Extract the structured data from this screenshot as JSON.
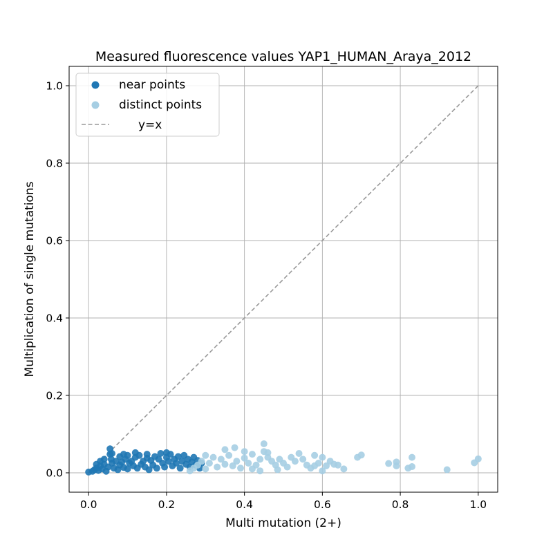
{
  "chart_data": {
    "type": "scatter",
    "title": "Measured fluorescence values YAP1_HUMAN_Araya_2012",
    "xlabel": "Multi mutation (2+)",
    "ylabel": "Multiplication of single mutations",
    "xlim": [
      -0.05,
      1.05
    ],
    "ylim": [
      -0.05,
      1.05
    ],
    "xticks": [
      "0.0",
      "0.2",
      "0.4",
      "0.6",
      "0.8",
      "1.0"
    ],
    "yticks": [
      "0.0",
      "0.2",
      "0.4",
      "0.6",
      "0.8",
      "1.0"
    ],
    "grid": true,
    "legend_position": "upper-left",
    "series": [
      {
        "name": "near points",
        "color": "#1f77b4",
        "points": [
          [
            0.0,
            0.002
          ],
          [
            0.01,
            0.004
          ],
          [
            0.015,
            0.008
          ],
          [
            0.02,
            0.012
          ],
          [
            0.025,
            0.006
          ],
          [
            0.03,
            0.018
          ],
          [
            0.035,
            0.01
          ],
          [
            0.04,
            0.022
          ],
          [
            0.045,
            0.004
          ],
          [
            0.05,
            0.015
          ],
          [
            0.055,
            0.062
          ],
          [
            0.055,
            0.048
          ],
          [
            0.058,
            0.035
          ],
          [
            0.06,
            0.025
          ],
          [
            0.065,
            0.012
          ],
          [
            0.07,
            0.03
          ],
          [
            0.075,
            0.008
          ],
          [
            0.08,
            0.02
          ],
          [
            0.085,
            0.028
          ],
          [
            0.09,
            0.014
          ],
          [
            0.095,
            0.035
          ],
          [
            0.1,
            0.01
          ],
          [
            0.105,
            0.025
          ],
          [
            0.11,
            0.03
          ],
          [
            0.115,
            0.018
          ],
          [
            0.12,
            0.04
          ],
          [
            0.125,
            0.012
          ],
          [
            0.13,
            0.045
          ],
          [
            0.135,
            0.022
          ],
          [
            0.14,
            0.03
          ],
          [
            0.145,
            0.015
          ],
          [
            0.15,
            0.038
          ],
          [
            0.155,
            0.008
          ],
          [
            0.16,
            0.032
          ],
          [
            0.165,
            0.02
          ],
          [
            0.17,
            0.042
          ],
          [
            0.175,
            0.012
          ],
          [
            0.18,
            0.035
          ],
          [
            0.185,
            0.05
          ],
          [
            0.19,
            0.025
          ],
          [
            0.195,
            0.015
          ],
          [
            0.2,
            0.04
          ],
          [
            0.205,
            0.03
          ],
          [
            0.21,
            0.048
          ],
          [
            0.215,
            0.018
          ],
          [
            0.22,
            0.035
          ],
          [
            0.225,
            0.025
          ],
          [
            0.23,
            0.042
          ],
          [
            0.235,
            0.012
          ],
          [
            0.24,
            0.03
          ],
          [
            0.245,
            0.045
          ],
          [
            0.25,
            0.022
          ],
          [
            0.255,
            0.035
          ],
          [
            0.26,
            0.015
          ],
          [
            0.265,
            0.028
          ],
          [
            0.27,
            0.04
          ],
          [
            0.275,
            0.02
          ],
          [
            0.28,
            0.032
          ],
          [
            0.285,
            0.012
          ],
          [
            0.29,
            0.025
          ],
          [
            0.12,
            0.052
          ],
          [
            0.15,
            0.048
          ],
          [
            0.2,
            0.052
          ],
          [
            0.1,
            0.045
          ],
          [
            0.06,
            0.05
          ],
          [
            0.02,
            0.022
          ],
          [
            0.03,
            0.03
          ],
          [
            0.04,
            0.035
          ],
          [
            0.08,
            0.042
          ],
          [
            0.09,
            0.048
          ]
        ]
      },
      {
        "name": "distinct points",
        "color": "#a6cee3",
        "points": [
          [
            0.26,
            0.005
          ],
          [
            0.27,
            0.012
          ],
          [
            0.28,
            0.02
          ],
          [
            0.29,
            0.03
          ],
          [
            0.3,
            0.01
          ],
          [
            0.31,
            0.025
          ],
          [
            0.32,
            0.04
          ],
          [
            0.33,
            0.015
          ],
          [
            0.34,
            0.035
          ],
          [
            0.35,
            0.022
          ],
          [
            0.36,
            0.045
          ],
          [
            0.37,
            0.018
          ],
          [
            0.38,
            0.03
          ],
          [
            0.39,
            0.012
          ],
          [
            0.4,
            0.038
          ],
          [
            0.41,
            0.025
          ],
          [
            0.42,
            0.048
          ],
          [
            0.43,
            0.02
          ],
          [
            0.44,
            0.035
          ],
          [
            0.45,
            0.075
          ],
          [
            0.45,
            0.055
          ],
          [
            0.46,
            0.04
          ],
          [
            0.47,
            0.03
          ],
          [
            0.48,
            0.02
          ],
          [
            0.49,
            0.035
          ],
          [
            0.5,
            0.025
          ],
          [
            0.51,
            0.015
          ],
          [
            0.52,
            0.04
          ],
          [
            0.53,
            0.03
          ],
          [
            0.54,
            0.05
          ],
          [
            0.55,
            0.035
          ],
          [
            0.56,
            0.02
          ],
          [
            0.57,
            0.012
          ],
          [
            0.58,
            0.045
          ],
          [
            0.59,
            0.025
          ],
          [
            0.6,
            0.04
          ],
          [
            0.61,
            0.018
          ],
          [
            0.62,
            0.03
          ],
          [
            0.63,
            0.022
          ],
          [
            0.655,
            0.01
          ],
          [
            0.69,
            0.04
          ],
          [
            0.7,
            0.046
          ],
          [
            0.77,
            0.024
          ],
          [
            0.79,
            0.028
          ],
          [
            0.79,
            0.018
          ],
          [
            0.82,
            0.012
          ],
          [
            0.83,
            0.04
          ],
          [
            0.83,
            0.016
          ],
          [
            0.92,
            0.008
          ],
          [
            0.99,
            0.026
          ],
          [
            1.0,
            0.036
          ],
          [
            0.375,
            0.065
          ],
          [
            0.4,
            0.055
          ],
          [
            0.35,
            0.06
          ],
          [
            0.3,
            0.045
          ],
          [
            0.42,
            0.01
          ],
          [
            0.44,
            0.005
          ],
          [
            0.46,
            0.052
          ],
          [
            0.485,
            0.008
          ],
          [
            0.58,
            0.018
          ],
          [
            0.6,
            0.005
          ],
          [
            0.64,
            0.02
          ]
        ]
      }
    ],
    "reference_line": {
      "name": "y=x",
      "from": [
        0,
        0
      ],
      "to": [
        1,
        1
      ],
      "color": "#999999",
      "style": "dashed"
    }
  }
}
